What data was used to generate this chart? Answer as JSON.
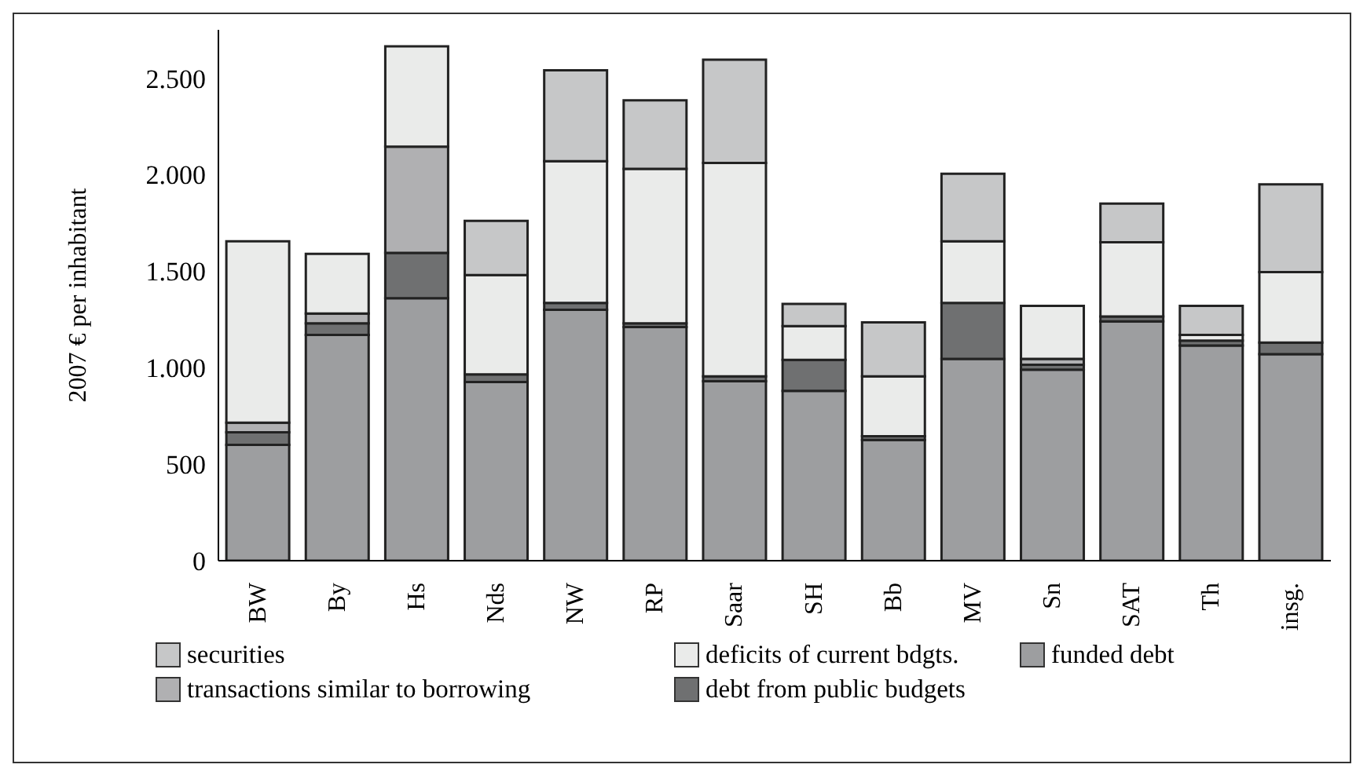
{
  "chart_data": {
    "type": "bar",
    "stacked": true,
    "ylabel": "2007 € per inhabitant",
    "categories": [
      "BW",
      "By",
      "Hs",
      "Nds",
      "NW",
      "RP",
      "Saar",
      "SH",
      "Bb",
      "MV",
      "Sn",
      "SAT",
      "Th",
      "insg."
    ],
    "series": [
      {
        "name": "funded debt",
        "color": "#9d9ea0",
        "values": [
          600,
          1170,
          1360,
          925,
          1300,
          1210,
          930,
          880,
          625,
          1045,
          990,
          1240,
          1115,
          1070
        ]
      },
      {
        "name": "debt from public budgets",
        "color": "#6f7071",
        "values": [
          65,
          60,
          235,
          40,
          35,
          20,
          25,
          160,
          20,
          290,
          25,
          25,
          25,
          60
        ]
      },
      {
        "name": "transactions similar to borrowing",
        "color": "#b0b0b2",
        "values": [
          50,
          50,
          550,
          0,
          0,
          0,
          0,
          0,
          0,
          0,
          30,
          0,
          0,
          0
        ]
      },
      {
        "name": "deficits of current bdgts.",
        "color": "#eaebea",
        "values": [
          940,
          310,
          520,
          515,
          735,
          800,
          1105,
          175,
          310,
          320,
          275,
          385,
          30,
          365
        ]
      },
      {
        "name": "securities",
        "color": "#c6c7c8",
        "values": [
          0,
          0,
          0,
          280,
          470,
          355,
          535,
          115,
          280,
          350,
          0,
          200,
          150,
          455
        ]
      }
    ],
    "ylim": [
      0,
      2750
    ],
    "yticks": [
      0,
      500,
      {
        "value": 1000,
        "label": "1.000"
      },
      {
        "value": 1500,
        "label": "1.500"
      },
      {
        "value": 2000,
        "label": "2.000"
      },
      {
        "value": 2500,
        "label": "2.500"
      }
    ],
    "grid": false,
    "legend": "bottom"
  }
}
